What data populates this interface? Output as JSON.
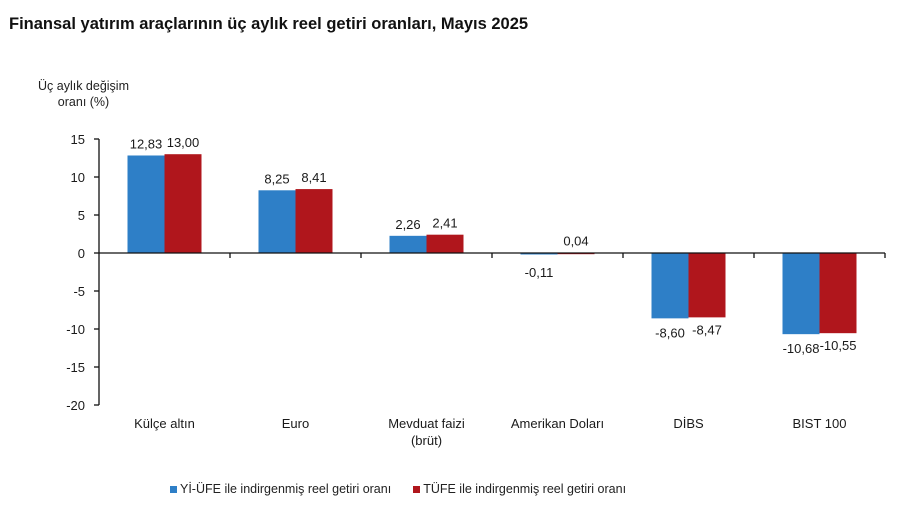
{
  "chart_data": {
    "type": "bar",
    "title": "Finansal yatırım araçlarının üç aylık reel getiri oranları, Mayıs 2025",
    "ylabel_lines": [
      "Üç aylık değişim",
      "oranı (%)"
    ],
    "xlabel": "",
    "ylim": [
      -20,
      15
    ],
    "yticks": [
      15,
      10,
      5,
      0,
      -5,
      -10,
      -15,
      -20
    ],
    "ytick_labels": [
      "15",
      "10",
      "5",
      "0",
      "-5",
      "-10",
      "-15",
      "-20"
    ],
    "grid": false,
    "legend_position": "bottom",
    "categories": [
      [
        "Külçe altın"
      ],
      [
        "Euro"
      ],
      [
        "Mevduat faizi",
        "(brüt)"
      ],
      [
        "Amerikan Doları"
      ],
      [
        "DİBS"
      ],
      [
        "BIST 100"
      ]
    ],
    "series": [
      {
        "name": "Yİ-ÜFE ile indirgenmiş reel getiri oranı",
        "color": "#2e7fc7",
        "values": [
          12.83,
          8.25,
          2.26,
          -0.11,
          -8.6,
          -10.68
        ],
        "labels": [
          "12,83",
          "8,25",
          "2,26",
          "-0,11",
          "-8,60",
          "-10,68"
        ]
      },
      {
        "name": "TÜFE ile indirgenmiş reel getiri oranı",
        "color": "#b0161c",
        "values": [
          13.0,
          8.41,
          2.41,
          0.04,
          -8.47,
          -10.55
        ],
        "labels": [
          "13,00",
          "8,41",
          "2,41",
          "0,04",
          "-8,47",
          "-10,55"
        ]
      }
    ]
  }
}
